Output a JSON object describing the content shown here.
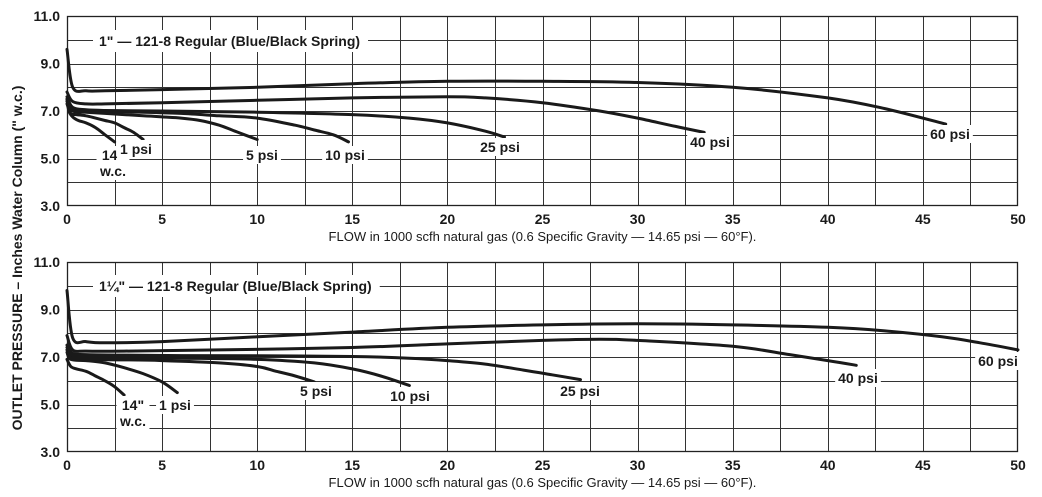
{
  "ylabel": "OUTLET PRESSURE – Inches Water Column (\" w.c.)",
  "chart_data": [
    {
      "type": "line",
      "title": "1\" — 121-8 Regular (Blue/Black Spring)",
      "xlabel": "FLOW in 1000 scfh natural gas (0.6 Specific Gravity — 14.65 psi — 60°F).",
      "xlim": [
        0,
        50
      ],
      "ylim": [
        3.0,
        11.0
      ],
      "x_ticks": [
        "0",
        "5",
        "10",
        "15",
        "20",
        "25",
        "30",
        "35",
        "40",
        "45",
        "50"
      ],
      "y_ticks": [
        "3.0",
        "5.0",
        "7.0",
        "9.0",
        "11.0"
      ],
      "grid": true,
      "series": [
        {
          "name": "14\" w.c.",
          "label_lines": [
            "14\"",
            "w.c."
          ],
          "x": [
            0,
            0.1,
            0.3,
            0.6,
            1.0,
            1.5,
            2.0,
            2.5
          ],
          "y": [
            7.5,
            7.0,
            6.75,
            6.6,
            6.5,
            6.3,
            6.0,
            5.7
          ]
        },
        {
          "name": "1 psi",
          "label_lines": [
            "1 psi"
          ],
          "x": [
            0,
            0.2,
            0.5,
            1,
            1.5,
            2,
            2.5,
            3,
            3.5,
            4
          ],
          "y": [
            7.3,
            6.9,
            6.85,
            6.8,
            6.7,
            6.6,
            6.5,
            6.3,
            6.1,
            5.8
          ]
        },
        {
          "name": "5 psi",
          "label_lines": [
            "5 psi"
          ],
          "x": [
            0,
            0.3,
            1,
            2,
            3,
            4,
            5,
            6,
            7,
            8,
            9,
            10
          ],
          "y": [
            7.4,
            7.0,
            6.95,
            6.9,
            6.85,
            6.8,
            6.75,
            6.7,
            6.6,
            6.4,
            6.1,
            5.8
          ]
        },
        {
          "name": "10 psi",
          "label_lines": [
            "10 psi"
          ],
          "x": [
            0,
            0.3,
            1,
            2,
            4,
            6,
            8,
            10,
            12,
            13,
            14,
            14.8
          ],
          "y": [
            7.5,
            7.05,
            7.0,
            6.98,
            6.95,
            6.9,
            6.8,
            6.7,
            6.4,
            6.2,
            6.0,
            5.7
          ]
        },
        {
          "name": "25 psi",
          "label_lines": [
            "25 psi"
          ],
          "x": [
            0,
            0.3,
            1,
            2,
            5,
            10,
            15,
            18,
            20,
            22,
            23
          ],
          "y": [
            7.6,
            7.15,
            7.05,
            7.02,
            7.0,
            6.95,
            6.85,
            6.7,
            6.5,
            6.15,
            5.9
          ]
        },
        {
          "name": "40 psi",
          "label_lines": [
            "40 psi"
          ],
          "x": [
            0,
            0.3,
            1,
            2,
            5,
            10,
            15,
            20,
            22,
            25,
            28,
            30,
            32,
            33.5
          ],
          "y": [
            7.8,
            7.4,
            7.3,
            7.3,
            7.35,
            7.45,
            7.55,
            7.6,
            7.55,
            7.35,
            7.0,
            6.7,
            6.35,
            6.1
          ]
        },
        {
          "name": "60 psi",
          "label_lines": [
            "60 psi"
          ],
          "x": [
            0,
            0.3,
            1,
            2,
            5,
            10,
            15,
            20,
            25,
            30,
            35,
            40,
            43,
            46.2
          ],
          "y": [
            9.6,
            8.0,
            7.85,
            7.85,
            7.9,
            8.0,
            8.15,
            8.25,
            8.25,
            8.2,
            8.0,
            7.55,
            7.1,
            6.45
          ]
        }
      ]
    },
    {
      "type": "line",
      "title": "1¼\" — 121-8 Regular (Blue/Black Spring)",
      "xlabel": "FLOW in 1000 scfh natural gas (0.6 Specific Gravity — 14.65 psi — 60°F).",
      "xlim": [
        0,
        50
      ],
      "ylim": [
        3.0,
        11.0
      ],
      "x_ticks": [
        "0",
        "5",
        "10",
        "15",
        "20",
        "25",
        "30",
        "35",
        "40",
        "45",
        "50"
      ],
      "y_ticks": [
        "3.0",
        "5.0",
        "7.0",
        "9.0",
        "11.0"
      ],
      "grid": true,
      "series": [
        {
          "name": "14\" w.c.",
          "label_lines": [
            "14\"",
            "w.c."
          ],
          "x": [
            0,
            0.2,
            0.5,
            1,
            1.5,
            2,
            2.5,
            3
          ],
          "y": [
            6.9,
            6.6,
            6.5,
            6.4,
            6.2,
            6.0,
            5.75,
            5.4
          ]
        },
        {
          "name": "1 psi",
          "label_lines": [
            "1 psi"
          ],
          "x": [
            0,
            0.2,
            1,
            2,
            3,
            4,
            5,
            5.8
          ],
          "y": [
            7.2,
            6.9,
            6.85,
            6.75,
            6.55,
            6.3,
            5.95,
            5.5
          ]
        },
        {
          "name": "5 psi",
          "label_lines": [
            "5 psi"
          ],
          "x": [
            0,
            0.3,
            1,
            3,
            5,
            8,
            10,
            11,
            12,
            13
          ],
          "y": [
            7.3,
            6.95,
            6.9,
            6.88,
            6.85,
            6.75,
            6.6,
            6.4,
            6.2,
            5.95
          ]
        },
        {
          "name": "10 psi",
          "label_lines": [
            "10 psi"
          ],
          "x": [
            0,
            0.3,
            1,
            3,
            6,
            10,
            13,
            15,
            16.5,
            18
          ],
          "y": [
            7.4,
            7.05,
            7.0,
            6.98,
            6.95,
            6.9,
            6.75,
            6.5,
            6.2,
            5.8
          ]
        },
        {
          "name": "25 psi",
          "label_lines": [
            "25 psi"
          ],
          "x": [
            0,
            0.3,
            1,
            3,
            6,
            10,
            15,
            18,
            20,
            22,
            24,
            25.5,
            27
          ],
          "y": [
            7.5,
            7.15,
            7.1,
            7.08,
            7.06,
            7.05,
            7.02,
            6.95,
            6.85,
            6.7,
            6.45,
            6.25,
            6.05
          ]
        },
        {
          "name": "40 psi",
          "label_lines": [
            "40 psi"
          ],
          "x": [
            0,
            0.3,
            1,
            3,
            8,
            15,
            20,
            25,
            28,
            30,
            35,
            38,
            40,
            41.5
          ],
          "y": [
            7.9,
            7.3,
            7.25,
            7.25,
            7.3,
            7.4,
            7.55,
            7.7,
            7.75,
            7.7,
            7.45,
            7.1,
            6.85,
            6.65
          ]
        },
        {
          "name": "60 psi",
          "label_lines": [
            "60 psi"
          ],
          "x": [
            0,
            0.3,
            1,
            2,
            5,
            10,
            15,
            20,
            25,
            30,
            35,
            40,
            43,
            46,
            48,
            50
          ],
          "y": [
            9.8,
            7.8,
            7.65,
            7.6,
            7.65,
            7.85,
            8.05,
            8.25,
            8.35,
            8.4,
            8.35,
            8.25,
            8.1,
            7.85,
            7.6,
            7.3
          ]
        }
      ]
    }
  ]
}
